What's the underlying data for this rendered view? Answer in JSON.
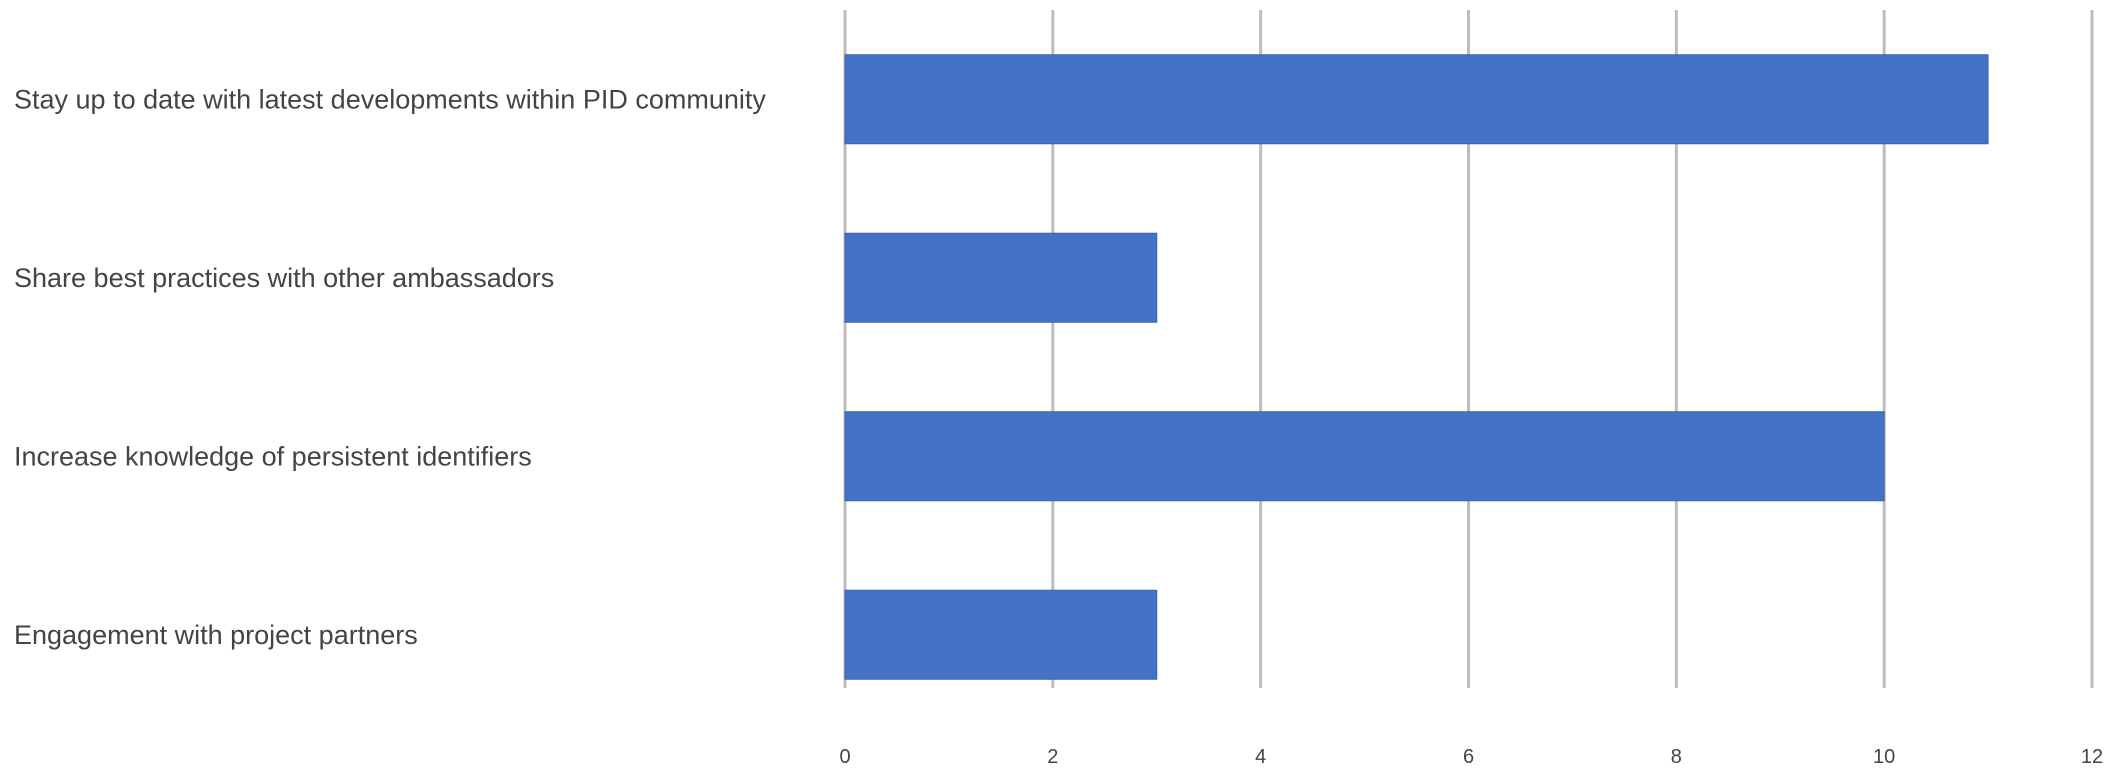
{
  "chart_data": {
    "type": "bar",
    "orientation": "horizontal",
    "title": "",
    "xlabel": "",
    "ylabel": "",
    "categories": [
      "Stay up to date with latest developments within PID community",
      "Share best practices with other ambassadors",
      "Increase knowledge of persistent identifiers",
      "Engagement with project partners"
    ],
    "values": [
      11,
      3,
      10,
      3
    ],
    "xlim": [
      0,
      12
    ],
    "ticks": [
      0,
      2,
      4,
      6,
      8,
      10,
      12
    ],
    "tick_labels": [
      "0",
      "2",
      "4",
      "6",
      "8",
      "10",
      "12"
    ],
    "grid": true,
    "legend": "none",
    "bar_color": "#4472c4",
    "gridline_color": "#bdbdbd",
    "text_color": "#444444"
  }
}
